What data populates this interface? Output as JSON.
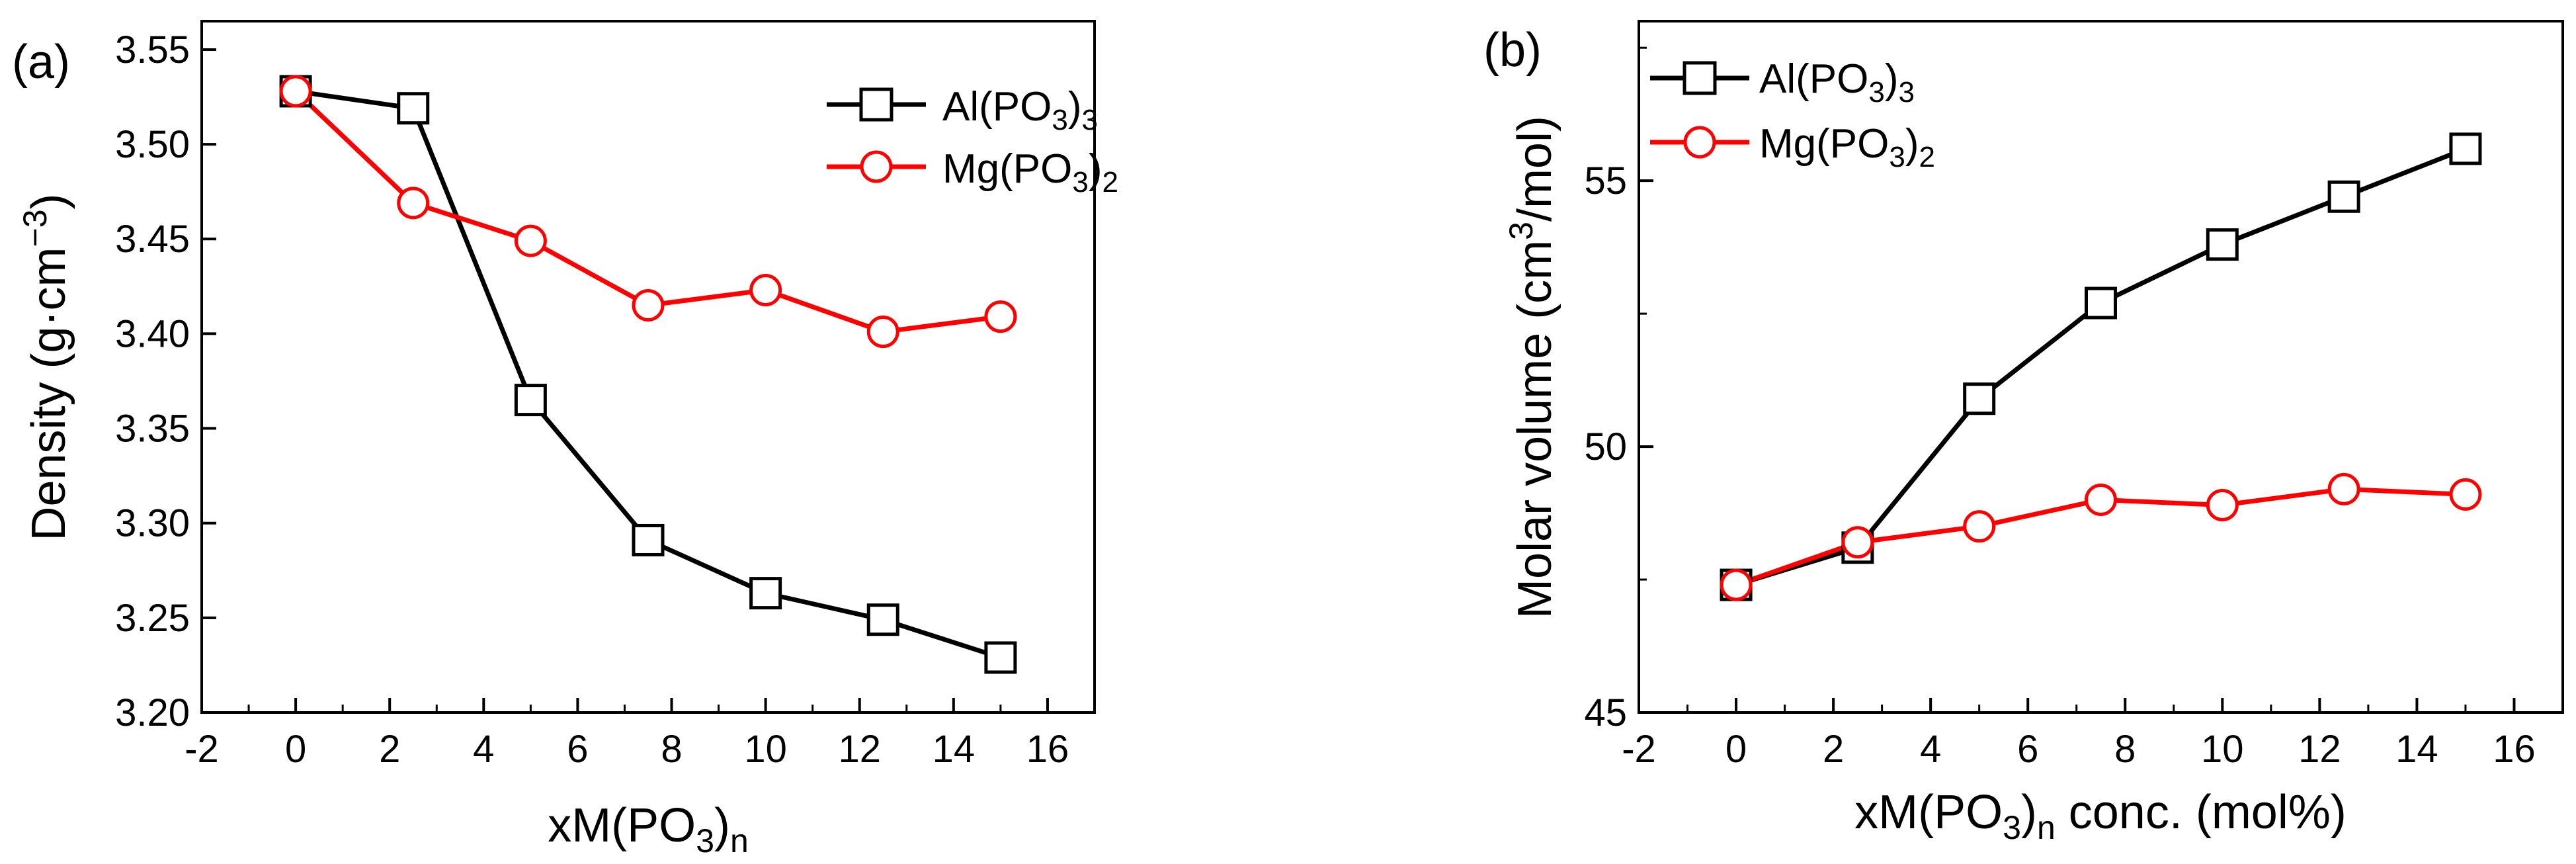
{
  "chart_data": [
    {
      "type": "line",
      "panel_label": "(a)",
      "title": "",
      "xlabel": "xM(PO3)n",
      "ylabel": "Density (g·cm−3)",
      "xlim": [
        -2,
        17
      ],
      "ylim": [
        3.2,
        3.565
      ],
      "xticks": [
        -2,
        0,
        2,
        4,
        6,
        8,
        10,
        12,
        14,
        16
      ],
      "xtick_labels": [
        "-2",
        "0",
        "2",
        "4",
        "6",
        "8",
        "10",
        "12",
        "14",
        "16"
      ],
      "yticks": [
        3.2,
        3.25,
        3.3,
        3.35,
        3.4,
        3.45,
        3.5,
        3.55
      ],
      "ytick_labels": [
        "3.20",
        "3.25",
        "3.30",
        "3.35",
        "3.40",
        "3.45",
        "3.50",
        "3.55"
      ],
      "legend_position": "top-right",
      "series": [
        {
          "name": "Al(PO3)3",
          "color": "#000000",
          "marker": "square",
          "x": [
            0,
            2.5,
            5,
            7.5,
            10,
            12.5,
            15
          ],
          "y": [
            3.528,
            3.519,
            3.365,
            3.291,
            3.263,
            3.249,
            3.229
          ]
        },
        {
          "name": "Mg(PO3)2",
          "color": "#ff0000",
          "marker": "circle",
          "x": [
            0,
            2.5,
            5,
            7.5,
            10,
            12.5,
            15
          ],
          "y": [
            3.528,
            3.469,
            3.449,
            3.415,
            3.423,
            3.401,
            3.409
          ]
        }
      ]
    },
    {
      "type": "line",
      "panel_label": "(b)",
      "title": "",
      "xlabel": "xM(PO3)n conc. (mol%)",
      "ylabel": "Molar volume (cm3/mol)",
      "xlim": [
        -2,
        17
      ],
      "ylim": [
        45,
        58
      ],
      "xticks": [
        -2,
        0,
        2,
        4,
        6,
        8,
        10,
        12,
        14,
        16
      ],
      "xtick_labels": [
        "-2",
        "0",
        "2",
        "4",
        "6",
        "8",
        "10",
        "12",
        "14",
        "16"
      ],
      "yticks": [
        45,
        50,
        55
      ],
      "ytick_labels": [
        "45",
        "50",
        "55"
      ],
      "legend_position": "top-left",
      "series": [
        {
          "name": "Al(PO3)3",
          "color": "#000000",
          "marker": "square",
          "x": [
            0,
            2.5,
            5,
            7.5,
            10,
            12.5,
            15
          ],
          "y": [
            47.4,
            48.1,
            50.9,
            52.7,
            53.8,
            54.7,
            55.6
          ]
        },
        {
          "name": "Mg(PO3)2",
          "color": "#ff0000",
          "marker": "circle",
          "x": [
            0,
            2.5,
            5,
            7.5,
            10,
            12.5,
            15
          ],
          "y": [
            47.4,
            48.2,
            48.5,
            49.0,
            48.9,
            49.2,
            49.1
          ]
        }
      ]
    }
  ]
}
